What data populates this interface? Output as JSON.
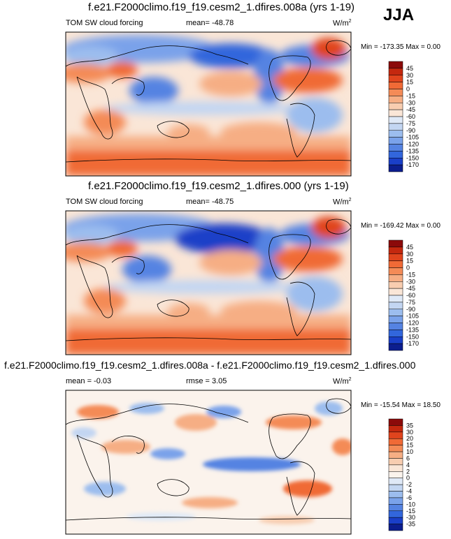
{
  "season": "JJA",
  "panels": [
    {
      "title": "f.e21.F2000climo.f19_f19.cesm2_1.dfires.008a (yrs 1-19)",
      "left_label": "TOM SW cloud forcing",
      "stat1": "mean= -48.78",
      "stat2": "",
      "units": "W/m",
      "units_sup": "2",
      "minmax": "Min = -173.35 Max =   0.00"
    },
    {
      "title": "f.e21.F2000climo.f19_f19.cesm2_1.dfires.000 (yrs 1-19)",
      "left_label": "TOM SW cloud forcing",
      "stat1": "mean= -48.75",
      "stat2": "",
      "units": "W/m",
      "units_sup": "2",
      "minmax": "Min = -169.42 Max =   0.00"
    },
    {
      "title": "f.e21.F2000climo.f19_f19.cesm2_1.dfires.008a - f.e21.F2000climo.f19_f19.cesm2_1.dfires.000",
      "left_label": "mean =  -0.03",
      "stat1": "rmse =   3.05",
      "stat2": "",
      "units": "W/m",
      "units_sup": "2",
      "minmax": "Min = -15.54 Max =  18.50"
    }
  ],
  "chart_data": [
    {
      "type": "heatmap",
      "title": "f.e21.F2000climo.f19_f19.cesm2_1.dfires.008a (yrs 1-19)",
      "variable": "TOM SW cloud forcing",
      "units": "W/m2",
      "mean": -48.78,
      "min": -173.35,
      "max": 0.0,
      "colorbar_levels": [
        45,
        30,
        15,
        0,
        -15,
        -30,
        -45,
        -60,
        -75,
        -90,
        -105,
        -120,
        -135,
        -150,
        -170
      ],
      "colorbar_colors": [
        "#8b0a0a",
        "#c4280f",
        "#e0441d",
        "#f06a36",
        "#f48b57",
        "#f6ae84",
        "#f8cdb0",
        "#fae6d7",
        "#dfe9f7",
        "#c3d6f2",
        "#9cbdee",
        "#7aa2ea",
        "#5583e2",
        "#3266dc",
        "#1a3fc8",
        "#0c1e8e"
      ]
    },
    {
      "type": "heatmap",
      "title": "f.e21.F2000climo.f19_f19.cesm2_1.dfires.000 (yrs 1-19)",
      "variable": "TOM SW cloud forcing",
      "units": "W/m2",
      "mean": -48.75,
      "min": -169.42,
      "max": 0.0,
      "colorbar_levels": [
        45,
        30,
        15,
        0,
        -15,
        -30,
        -45,
        -60,
        -75,
        -90,
        -105,
        -120,
        -135,
        -150,
        -170
      ],
      "colorbar_colors": [
        "#8b0a0a",
        "#c4280f",
        "#e0441d",
        "#f06a36",
        "#f48b57",
        "#f6ae84",
        "#f8cdb0",
        "#fae6d7",
        "#dfe9f7",
        "#c3d6f2",
        "#9cbdee",
        "#7aa2ea",
        "#5583e2",
        "#3266dc",
        "#1a3fc8",
        "#0c1e8e"
      ]
    },
    {
      "type": "heatmap",
      "title": "f.e21.F2000climo.f19_f19.cesm2_1.dfires.008a - f.e21.F2000climo.f19_f19.cesm2_1.dfires.000",
      "units": "W/m2",
      "mean": -0.03,
      "rmse": 3.05,
      "min": -15.54,
      "max": 18.5,
      "colorbar_levels": [
        35,
        30,
        20,
        15,
        10,
        6,
        4,
        2,
        0,
        -2,
        -4,
        -6,
        -10,
        -15,
        -30,
        -35
      ],
      "colorbar_colors": [
        "#8b0a0a",
        "#c4280f",
        "#e0441d",
        "#f06a36",
        "#f48b57",
        "#f6ae84",
        "#f8cdb0",
        "#fae6d7",
        "#fbf3ec",
        "#dfe9f7",
        "#c3d6f2",
        "#9cbdee",
        "#7aa2ea",
        "#5583e2",
        "#3266dc",
        "#1a3fc8",
        "#0c1e8e"
      ]
    }
  ]
}
